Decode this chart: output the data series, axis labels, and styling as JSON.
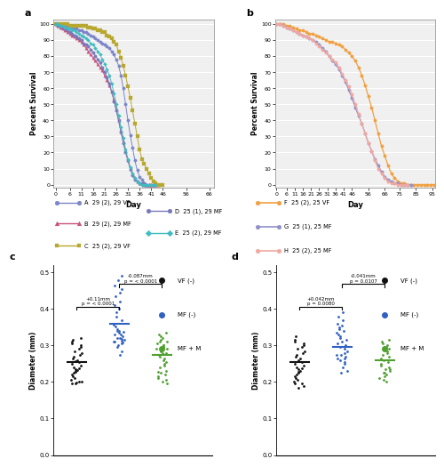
{
  "panel_a_label": "a",
  "panel_b_label": "b",
  "panel_c_label": "c",
  "panel_d_label": "d",
  "survival_a_xlabel": "Day",
  "survival_a_ylabel": "Percent Survival",
  "survival_a_xticks": [
    0,
    6,
    11,
    16,
    21,
    26,
    31,
    36,
    41,
    46,
    56,
    66
  ],
  "survival_a_yticks": [
    0,
    10,
    20,
    30,
    40,
    50,
    60,
    70,
    80,
    90,
    100
  ],
  "survival_a_xlim": [
    -1,
    68
  ],
  "survival_a_ylim": [
    -2,
    103
  ],
  "survival_b_xlabel": "Day",
  "survival_b_ylabel": "Percent Survival",
  "survival_b_xticks": [
    0,
    6,
    11,
    16,
    21,
    26,
    31,
    36,
    41,
    46,
    56,
    66,
    75,
    85,
    95
  ],
  "survival_b_yticks": [
    0,
    10,
    20,
    30,
    40,
    50,
    60,
    70,
    80,
    90,
    100
  ],
  "survival_b_xlim": [
    -1,
    97
  ],
  "survival_b_ylim": [
    -2,
    103
  ],
  "series_A": {
    "label": "A  29 (2), 29 VF",
    "color": "#7b85c8",
    "marker": "o",
    "markersize": 2.5,
    "x": [
      0,
      1,
      2,
      3,
      4,
      5,
      6,
      7,
      8,
      9,
      10,
      11,
      12,
      13,
      14,
      15,
      16,
      17,
      18,
      19,
      20,
      21,
      22,
      23,
      24,
      25,
      26,
      27,
      28,
      29,
      30,
      31,
      32,
      33,
      34,
      35,
      36,
      37,
      38,
      39,
      40,
      41,
      42,
      43
    ],
    "y": [
      100,
      100,
      100,
      99,
      99,
      99,
      98,
      98,
      97,
      97,
      96,
      96,
      95,
      95,
      94,
      93,
      92,
      91,
      90,
      89,
      88,
      87,
      86,
      85,
      83,
      81,
      78,
      74,
      68,
      60,
      50,
      40,
      31,
      23,
      15,
      9,
      5,
      3,
      1,
      0,
      0,
      0,
      0,
      0
    ]
  },
  "series_B": {
    "label": "B  29 (2), 29 MF",
    "color": "#c8517b",
    "marker": "^",
    "markersize": 2.5,
    "x": [
      0,
      1,
      2,
      3,
      4,
      5,
      6,
      7,
      8,
      9,
      10,
      11,
      12,
      13,
      14,
      15,
      16,
      17,
      18,
      19,
      20,
      21,
      22,
      23,
      24,
      25,
      26,
      27,
      28,
      29,
      30,
      31,
      32,
      33,
      34,
      35,
      36,
      37,
      38,
      39,
      40,
      41,
      42,
      43,
      44
    ],
    "y": [
      100,
      99,
      98,
      97,
      96,
      95,
      94,
      93,
      92,
      91,
      90,
      89,
      87,
      85,
      83,
      81,
      79,
      77,
      75,
      73,
      71,
      68,
      65,
      62,
      58,
      53,
      47,
      40,
      33,
      27,
      21,
      15,
      10,
      7,
      4,
      2,
      1,
      1,
      0,
      0,
      0,
      0,
      0,
      0,
      0
    ]
  },
  "series_C": {
    "label": "C  25 (2), 29 VF",
    "color": "#b8a830",
    "marker": "s",
    "markersize": 2.5,
    "x": [
      0,
      1,
      2,
      3,
      4,
      5,
      6,
      7,
      8,
      9,
      10,
      11,
      12,
      13,
      14,
      15,
      16,
      17,
      18,
      19,
      20,
      21,
      22,
      23,
      24,
      25,
      26,
      27,
      28,
      29,
      30,
      31,
      32,
      33,
      34,
      35,
      36,
      37,
      38,
      39,
      40,
      41,
      42,
      43,
      44,
      45,
      46
    ],
    "y": [
      100,
      100,
      100,
      100,
      100,
      100,
      99,
      99,
      99,
      99,
      99,
      99,
      99,
      99,
      98,
      98,
      97,
      97,
      96,
      96,
      95,
      95,
      93,
      92,
      91,
      89,
      87,
      83,
      79,
      74,
      68,
      61,
      54,
      46,
      38,
      30,
      22,
      16,
      13,
      10,
      7,
      4,
      2,
      1,
      0,
      0,
      0
    ]
  },
  "series_D": {
    "label": "D  25 (1), 29 MF",
    "color": "#7878bb",
    "marker": "o",
    "markersize": 2.5,
    "x": [
      0,
      1,
      2,
      3,
      4,
      5,
      6,
      7,
      8,
      9,
      10,
      11,
      12,
      13,
      14,
      15,
      16,
      17,
      18,
      19,
      20,
      21,
      22,
      23,
      24,
      25,
      26,
      27,
      28,
      29,
      30,
      31,
      32,
      33,
      34,
      35,
      36,
      37,
      38,
      39,
      40,
      41,
      42
    ],
    "y": [
      100,
      99,
      99,
      98,
      97,
      96,
      95,
      94,
      93,
      92,
      91,
      90,
      88,
      87,
      86,
      84,
      82,
      80,
      78,
      76,
      73,
      70,
      67,
      63,
      58,
      52,
      46,
      40,
      33,
      26,
      20,
      15,
      10,
      6,
      3,
      2,
      1,
      1,
      1,
      0,
      0,
      0,
      0
    ]
  },
  "series_E": {
    "label": "E  25 (2), 29 MF",
    "color": "#40bcc0",
    "marker": "D",
    "markersize": 2.0,
    "x": [
      0,
      1,
      2,
      3,
      4,
      5,
      6,
      7,
      8,
      9,
      10,
      11,
      12,
      13,
      14,
      15,
      16,
      17,
      18,
      19,
      20,
      21,
      22,
      23,
      24,
      25,
      26,
      27,
      28,
      29,
      30,
      31,
      32,
      33,
      34,
      35,
      36,
      37,
      38,
      39,
      40,
      41,
      42,
      43
    ],
    "y": [
      100,
      100,
      99,
      99,
      98,
      97,
      97,
      96,
      96,
      95,
      94,
      93,
      92,
      91,
      90,
      88,
      87,
      85,
      83,
      81,
      78,
      75,
      72,
      68,
      63,
      57,
      50,
      43,
      36,
      29,
      22,
      16,
      11,
      7,
      4,
      2,
      1,
      0,
      0,
      0,
      0,
      0,
      0,
      0
    ]
  },
  "series_F": {
    "label": "F  25 (2), 25 VF",
    "color": "#f0a040",
    "marker": "o",
    "markersize": 2.5,
    "x": [
      0,
      2,
      4,
      6,
      8,
      10,
      12,
      14,
      16,
      18,
      20,
      22,
      24,
      26,
      28,
      30,
      32,
      34,
      36,
      38,
      40,
      42,
      44,
      46,
      48,
      50,
      52,
      54,
      56,
      58,
      60,
      62,
      64,
      66,
      68,
      70,
      72,
      74,
      76,
      78,
      80,
      82,
      84,
      86,
      88,
      90,
      92,
      94,
      96
    ],
    "y": [
      100,
      100,
      100,
      99,
      99,
      98,
      97,
      96,
      96,
      95,
      94,
      94,
      93,
      92,
      91,
      90,
      89,
      89,
      88,
      87,
      86,
      84,
      82,
      80,
      77,
      73,
      68,
      62,
      55,
      48,
      40,
      32,
      24,
      18,
      12,
      7,
      4,
      2,
      1,
      1,
      0,
      0,
      0,
      0,
      0,
      0,
      0,
      0,
      0
    ]
  },
  "series_G": {
    "label": "G  25 (1), 25 MF",
    "color": "#9090cc",
    "marker": "o",
    "markersize": 2.5,
    "x": [
      0,
      2,
      4,
      6,
      8,
      10,
      12,
      14,
      16,
      18,
      20,
      22,
      24,
      26,
      28,
      30,
      32,
      34,
      36,
      38,
      40,
      42,
      44,
      46,
      48,
      50,
      52,
      54,
      56,
      58,
      60,
      62,
      64,
      66,
      68,
      70,
      72,
      74,
      76,
      78,
      80,
      82
    ],
    "y": [
      100,
      100,
      99,
      98,
      97,
      96,
      95,
      94,
      93,
      92,
      91,
      90,
      89,
      87,
      85,
      83,
      80,
      77,
      75,
      72,
      68,
      64,
      59,
      54,
      48,
      43,
      38,
      32,
      26,
      21,
      16,
      12,
      8,
      5,
      3,
      2,
      1,
      1,
      0,
      0,
      0,
      0
    ]
  },
  "series_H": {
    "label": "H  25 (2), 25 MF",
    "color": "#f0a8a0",
    "marker": "o",
    "markersize": 2.5,
    "x": [
      0,
      2,
      4,
      6,
      8,
      10,
      12,
      14,
      16,
      18,
      20,
      22,
      24,
      26,
      28,
      30,
      32,
      34,
      36,
      38,
      40,
      42,
      44,
      46,
      48,
      50,
      52,
      54,
      56,
      58,
      60,
      62,
      64,
      66,
      68,
      70,
      72,
      74,
      76,
      78,
      80
    ],
    "y": [
      100,
      100,
      99,
      98,
      97,
      96,
      95,
      94,
      93,
      92,
      91,
      90,
      88,
      86,
      84,
      82,
      80,
      78,
      76,
      73,
      69,
      65,
      61,
      56,
      50,
      44,
      38,
      32,
      26,
      21,
      15,
      10,
      7,
      4,
      2,
      1,
      1,
      0,
      0,
      0,
      0
    ]
  },
  "scatter_c": {
    "ylabel": "Diameter (mm)",
    "ylim": [
      0.0,
      0.52
    ],
    "yticks": [
      0.0,
      0.1,
      0.2,
      0.3,
      0.4,
      0.5
    ],
    "groups": [
      "VF (-)",
      "MF (-)",
      "MF + M"
    ],
    "colors": [
      "#111111",
      "#3060c0",
      "#50a030"
    ],
    "annotation1_text": "+0.11mm\np = < 0.0001",
    "annotation2_text": "-0.087mm\np = < 0.0001",
    "vf_data": [
      0.195,
      0.2,
      0.205,
      0.21,
      0.215,
      0.22,
      0.225,
      0.228,
      0.23,
      0.232,
      0.235,
      0.238,
      0.24,
      0.245,
      0.25,
      0.255,
      0.258,
      0.26,
      0.265,
      0.27,
      0.275,
      0.28,
      0.285,
      0.29,
      0.295,
      0.3,
      0.305,
      0.31,
      0.315,
      0.32,
      0.195,
      0.198,
      0.202
    ],
    "mf_data": [
      0.275,
      0.285,
      0.295,
      0.305,
      0.308,
      0.31,
      0.312,
      0.315,
      0.318,
      0.32,
      0.325,
      0.33,
      0.335,
      0.338,
      0.34,
      0.345,
      0.352,
      0.358,
      0.37,
      0.38,
      0.39,
      0.4,
      0.41,
      0.42,
      0.435,
      0.445,
      0.455,
      0.465,
      0.48,
      0.49,
      0.3,
      0.31,
      0.32,
      0.33,
      0.34
    ],
    "mfm_data": [
      0.195,
      0.2,
      0.205,
      0.21,
      0.215,
      0.22,
      0.225,
      0.228,
      0.23,
      0.24,
      0.245,
      0.25,
      0.255,
      0.26,
      0.265,
      0.27,
      0.275,
      0.28,
      0.285,
      0.29,
      0.295,
      0.3,
      0.305,
      0.31,
      0.315,
      0.32,
      0.325,
      0.33,
      0.335,
      0.28,
      0.29,
      0.3,
      0.31
    ],
    "vf_mean": 0.255,
    "mf_mean": 0.36,
    "mfm_mean": 0.273
  },
  "scatter_d": {
    "ylabel": "Diameter (mm)",
    "ylim": [
      0.0,
      0.52
    ],
    "yticks": [
      0.0,
      0.1,
      0.2,
      0.3,
      0.4,
      0.5
    ],
    "groups": [
      "VF (-)",
      "MF (-)",
      "MF + M"
    ],
    "colors": [
      "#111111",
      "#3060c0",
      "#50a030"
    ],
    "annotation1_text": "+0.042mm\np = 0.0080",
    "annotation2_text": "-0.041mm\np = 0.0107",
    "vf_data": [
      0.185,
      0.195,
      0.2,
      0.205,
      0.21,
      0.215,
      0.22,
      0.225,
      0.228,
      0.23,
      0.235,
      0.238,
      0.24,
      0.245,
      0.25,
      0.255,
      0.26,
      0.265,
      0.27,
      0.275,
      0.28,
      0.285,
      0.29,
      0.295,
      0.3,
      0.305,
      0.31,
      0.315,
      0.325,
      0.19,
      0.195
    ],
    "mf_data": [
      0.225,
      0.23,
      0.24,
      0.25,
      0.26,
      0.265,
      0.27,
      0.275,
      0.28,
      0.285,
      0.29,
      0.295,
      0.3,
      0.305,
      0.31,
      0.315,
      0.32,
      0.325,
      0.33,
      0.335,
      0.34,
      0.345,
      0.35,
      0.355,
      0.36,
      0.37,
      0.38,
      0.39,
      0.255,
      0.265,
      0.275
    ],
    "mfm_data": [
      0.2,
      0.205,
      0.21,
      0.215,
      0.22,
      0.225,
      0.23,
      0.235,
      0.24,
      0.245,
      0.25,
      0.255,
      0.26,
      0.265,
      0.27,
      0.275,
      0.28,
      0.285,
      0.29,
      0.295,
      0.3,
      0.305,
      0.31,
      0.315,
      0.225,
      0.235
    ],
    "vf_mean": 0.255,
    "mf_mean": 0.297,
    "mfm_mean": 0.26
  },
  "bg_color": "#ffffff",
  "grid_color": "#cccccc",
  "text_color": "#000000"
}
